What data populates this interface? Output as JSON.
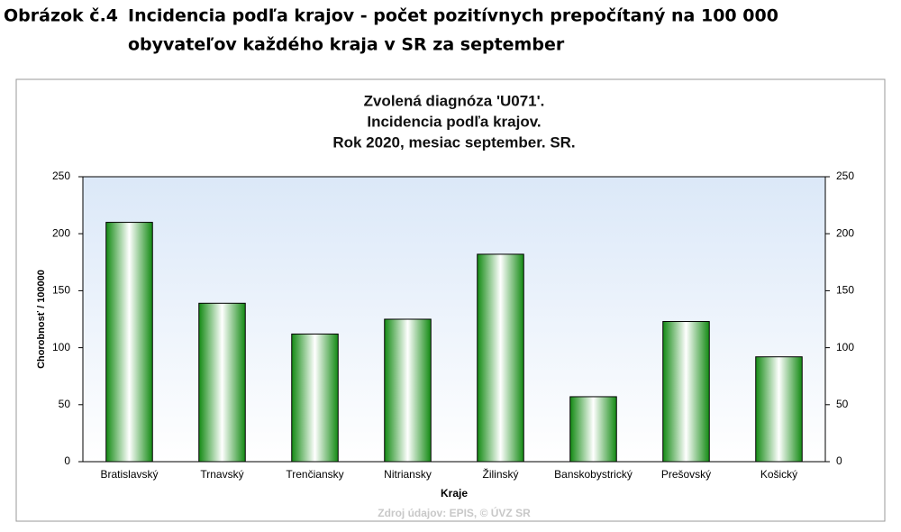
{
  "caption": {
    "label": "Obrázok č.4",
    "lines": [
      "Incidencia podľa krajov - počet pozitívnych prepočítaný na 100 000",
      "obyvateľov každého kraja v SR za september"
    ]
  },
  "chart_data": {
    "type": "bar",
    "title": [
      "Zvolená diagnóza 'U071'.",
      "Incidencia podľa krajov.",
      "Rok 2020, mesiac september. SR."
    ],
    "x_label": "Kraje",
    "y_label": "Chorobnosť / 100000",
    "source": "Zdroj údajov: EPIS, © ÚVZ SR",
    "categories": [
      "Bratislavský",
      "Trnavský",
      "Trenčiansky",
      "Nitriansky",
      "Žilinský",
      "Banskobystrický",
      "Prešovský",
      "Košický"
    ],
    "values": [
      210,
      139,
      112,
      125,
      182,
      57,
      123,
      92
    ],
    "color": "#138a13",
    "ylim": [
      0,
      250
    ],
    "yticks": [
      0,
      50,
      100,
      150,
      200,
      250
    ],
    "y2lim": [
      0,
      250
    ],
    "y2ticks": [
      0,
      50,
      100,
      150,
      200,
      250
    ],
    "grid": false
  }
}
